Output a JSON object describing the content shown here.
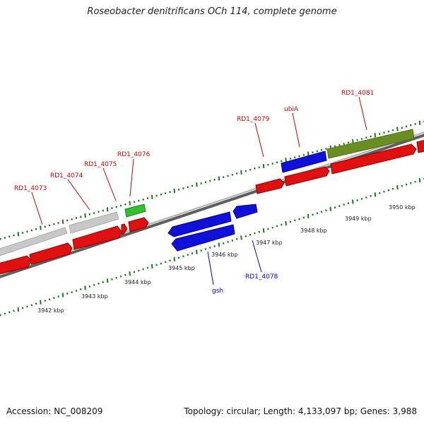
{
  "title": "Roseobacter denitrificans OCh 114, complete genome",
  "accession": "Accession: NC_008209",
  "summary": "Topology: circular; Length: 4,133,097 bp; Genes: 3,988",
  "colors": {
    "backbone": "#808080",
    "forward_gene": "#e01010",
    "reverse_gene": "#1010d8",
    "grey_feature": "#c8c8c8",
    "green_feature": "#30c030",
    "olive_feature": "#6b8e23",
    "tick": "#1a7a1a",
    "label_red": "#cc0000",
    "label_blue": "#0000cc"
  },
  "scale_labels": [
    "3942 kbp",
    "3943 kbp",
    "3944 kbp",
    "3945 kbp",
    "3946 kbp",
    "3947 kbp",
    "3948 kbp",
    "3949 kbp",
    "3950 kbp"
  ],
  "forward_labels": [
    "RD1_4073",
    "RD1_4074",
    "RD1_4075",
    "RD1_4076",
    "RD1_4079",
    "ubiA",
    "RD1_4081"
  ],
  "reverse_labels": [
    "gsh",
    "RD1_4078"
  ]
}
